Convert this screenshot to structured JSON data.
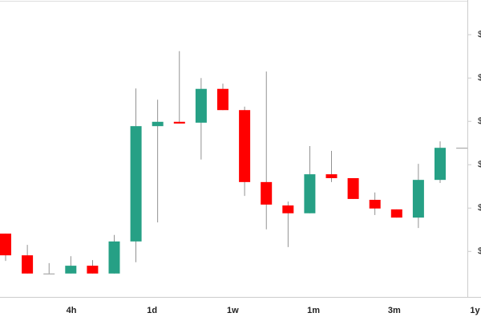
{
  "chart_data": {
    "type": "candlestick",
    "open": [
      1.41,
      0.91,
      0.49,
      0.49,
      0.67,
      0.49,
      1.23,
      3.89,
      3.99,
      3.97,
      4.75,
      4.26,
      2.6,
      2.06,
      1.88,
      2.78,
      2.69,
      2.19,
      1.97,
      1.78,
      2.65,
      3.39
    ],
    "high": [
      1.41,
      1.15,
      0.73,
      0.89,
      0.8,
      1.38,
      4.76,
      4.5,
      5.62,
      5.0,
      4.87,
      4.34,
      5.15,
      2.15,
      3.43,
      3.32,
      2.69,
      2.36,
      1.97,
      3.02,
      3.54,
      3.39
    ],
    "low": [
      0.78,
      0.49,
      0.49,
      0.49,
      0.49,
      0.49,
      0.75,
      1.67,
      3.95,
      3.12,
      4.26,
      2.28,
      1.51,
      1.1,
      1.88,
      2.6,
      2.21,
      1.84,
      1.78,
      1.54,
      2.58,
      3.39
    ],
    "close": [
      0.91,
      0.49,
      0.49,
      0.67,
      0.49,
      1.23,
      3.89,
      3.99,
      3.95,
      4.75,
      4.26,
      2.6,
      2.08,
      1.88,
      2.78,
      2.69,
      2.21,
      1.99,
      1.78,
      2.65,
      3.39,
      3.39
    ],
    "up_color": "#26a085",
    "down_color": "#ff0000",
    "flat_color": "#999999",
    "ylim": [
      -0.05,
      6.8
    ],
    "yticks": [
      {
        "value": 1,
        "label": "$"
      },
      {
        "value": 2,
        "label": "$"
      },
      {
        "value": 3,
        "label": "$"
      },
      {
        "value": 4,
        "label": "$"
      },
      {
        "value": 5,
        "label": "$"
      },
      {
        "value": 6,
        "label": "$"
      }
    ],
    "range_labels": [
      "4h",
      "1d",
      "1w",
      "1m",
      "3m",
      "1y"
    ]
  }
}
